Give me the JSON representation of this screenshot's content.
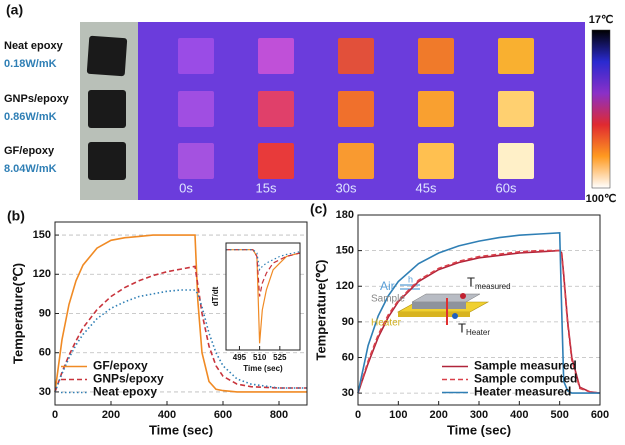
{
  "panel_a": {
    "label": "(a)",
    "samples": [
      {
        "name": "Neat epoxy",
        "conductivity": "0.18W/mK"
      },
      {
        "name": "GNPs/epoxy",
        "conductivity": "0.86W/mK"
      },
      {
        "name": "GF/epoxy",
        "conductivity": "8.04W/mK"
      }
    ],
    "times": [
      "0s",
      "15s",
      "30s",
      "45s",
      "60s"
    ],
    "colorbar": {
      "top": "17℃",
      "bottom": "100℃"
    }
  },
  "chart_data": [
    {
      "type": "line",
      "panel_label": "(b)",
      "x_label": "Time (sec)",
      "y_label": "Temperature(℃)",
      "xlim": [
        0,
        900
      ],
      "xticks": [
        0,
        200,
        400,
        600,
        800
      ],
      "ylim": [
        20,
        160
      ],
      "yticks": [
        30,
        60,
        90,
        120,
        150
      ],
      "grid": true,
      "legend": "lower left",
      "x": [
        0,
        25,
        50,
        75,
        100,
        150,
        200,
        250,
        300,
        350,
        400,
        450,
        500,
        510,
        525,
        550,
        575,
        600,
        650,
        700,
        800,
        900
      ],
      "series": [
        {
          "name": "GF/epoxy",
          "color": "#f08a24",
          "dash": "solid",
          "values": [
            30,
            70,
            97,
            115,
            127,
            140,
            146,
            148,
            149,
            150,
            150,
            150,
            150,
            100,
            60,
            38,
            32,
            31,
            30,
            30,
            30,
            30
          ]
        },
        {
          "name": "GNPs/epoxy",
          "color": "#c8343c",
          "dash": "dashed",
          "values": [
            30,
            45,
            58,
            69,
            79,
            93,
            103,
            110,
            115,
            119,
            122,
            124,
            126,
            112,
            90,
            65,
            50,
            42,
            36,
            34,
            33,
            33
          ]
        },
        {
          "name": "Neat epoxy",
          "color": "#2f7fb5",
          "dash": "dotted",
          "values": [
            30,
            44,
            56,
            66,
            74,
            86,
            94,
            99,
            103,
            105,
            107,
            108,
            108,
            105,
            95,
            75,
            60,
            50,
            40,
            36,
            33,
            33
          ]
        }
      ]
    },
    {
      "type": "line",
      "panel_label": "(c)",
      "x_label": "Time (sec)",
      "y_label": "Temperature(℃)",
      "xlim": [
        0,
        600
      ],
      "xticks": [
        0,
        100,
        200,
        300,
        400,
        500,
        600
      ],
      "ylim": [
        20,
        180
      ],
      "yticks": [
        30,
        60,
        90,
        120,
        150,
        180
      ],
      "grid": true,
      "legend": "lower right",
      "annotations": [
        "Air",
        "h",
        "T",
        "measured",
        "Sample",
        "Heater",
        "T",
        "Heater"
      ],
      "x": [
        0,
        25,
        50,
        75,
        100,
        150,
        200,
        250,
        300,
        350,
        400,
        450,
        500,
        505,
        510,
        520,
        530,
        550,
        575,
        600
      ],
      "series": [
        {
          "name": "Sample measured",
          "color": "#b0243a",
          "dash": "solid",
          "values": [
            30,
            55,
            77,
            94,
            107,
            124,
            134,
            140,
            144,
            146,
            148,
            149,
            150,
            148,
            130,
            90,
            60,
            35,
            31,
            30
          ]
        },
        {
          "name": "Sample computed",
          "color": "#d9404a",
          "dash": "dashed",
          "values": [
            30,
            57,
            79,
            96,
            108,
            125,
            135,
            141,
            145,
            147,
            149,
            150,
            150,
            148,
            128,
            88,
            58,
            34,
            31,
            30
          ]
        },
        {
          "name": "Heater measured",
          "color": "#2f7fb5",
          "dash": "solid",
          "values": [
            30,
            70,
            95,
            112,
            124,
            139,
            148,
            154,
            158,
            161,
            163,
            164,
            165,
            100,
            40,
            32,
            30,
            30,
            30,
            30
          ]
        }
      ]
    },
    {
      "type": "line",
      "x_label": "Time (sec)",
      "y_label": "dT/dt",
      "xlim": [
        485,
        540
      ],
      "xticks": [
        495,
        510,
        525
      ],
      "ylim": [
        -15,
        1
      ],
      "x": [
        485,
        495,
        505,
        508,
        510,
        512,
        515,
        520,
        525,
        530,
        540
      ],
      "series": [
        {
          "color": "#f08a24",
          "dash": "solid",
          "values": [
            0,
            0,
            0,
            -1,
            -14,
            -9,
            -6,
            -3,
            -2,
            -1,
            -0.5
          ]
        },
        {
          "color": "#c8343c",
          "dash": "dashed",
          "values": [
            0,
            0,
            0,
            -1,
            -7,
            -5,
            -3.5,
            -2,
            -1.5,
            -1,
            -0.5
          ]
        },
        {
          "color": "#2f7fb5",
          "dash": "dotted",
          "values": [
            0,
            0,
            0,
            -0.5,
            -3,
            -2.5,
            -2,
            -1.5,
            -1,
            -0.7,
            -0.3
          ]
        }
      ]
    }
  ]
}
